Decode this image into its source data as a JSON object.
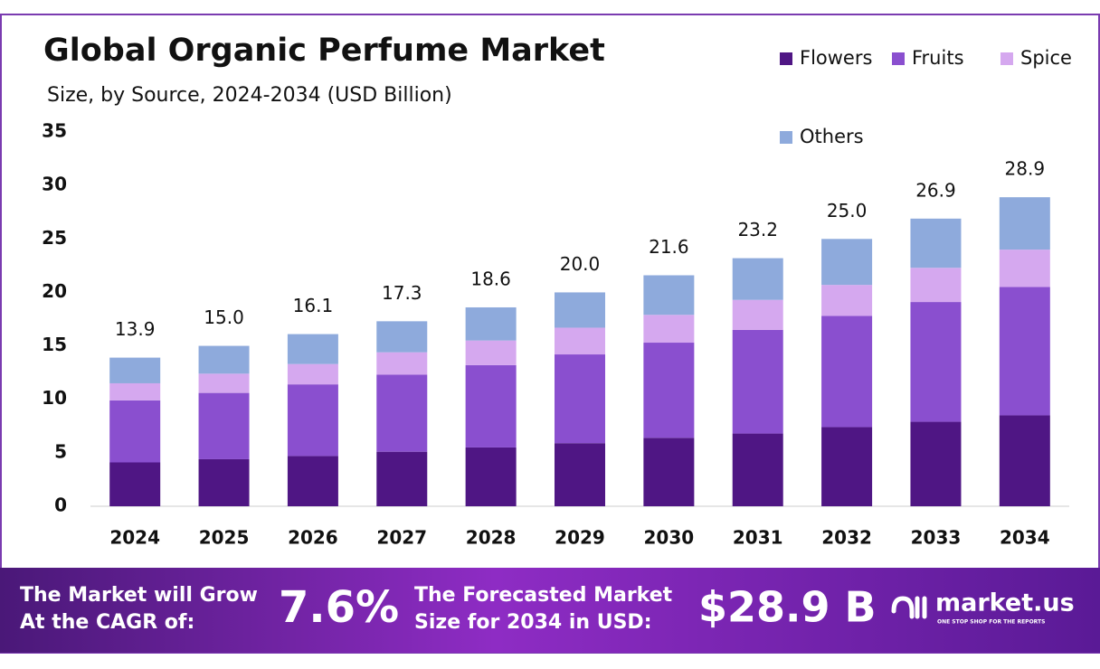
{
  "chart_data": {
    "type": "stacked-bar",
    "title": "Global Organic Perfume Market",
    "subtitle": "Size, by Source, 2024-2034 (USD Billion)",
    "categories": [
      "2024",
      "2025",
      "2026",
      "2027",
      "2028",
      "2029",
      "2030",
      "2031",
      "2032",
      "2033",
      "2034"
    ],
    "series": [
      {
        "name": "Flowers",
        "color": "#4f1684",
        "values": [
          4.1,
          4.4,
          4.7,
          5.1,
          5.5,
          5.9,
          6.4,
          6.8,
          7.4,
          7.9,
          8.5
        ]
      },
      {
        "name": "Fruits",
        "color": "#8a4fcf",
        "values": [
          5.8,
          6.2,
          6.7,
          7.2,
          7.7,
          8.3,
          8.9,
          9.7,
          10.4,
          11.2,
          12.0
        ]
      },
      {
        "name": "Spice",
        "color": "#d5a8ef",
        "values": [
          1.6,
          1.8,
          1.9,
          2.1,
          2.3,
          2.5,
          2.6,
          2.8,
          2.9,
          3.2,
          3.5
        ]
      },
      {
        "name": "Others",
        "color": "#8eaadc",
        "values": [
          2.4,
          2.6,
          2.8,
          2.9,
          3.1,
          3.3,
          3.7,
          3.9,
          4.3,
          4.6,
          4.9
        ]
      }
    ],
    "totals": [
      13.9,
      15.0,
      16.1,
      17.3,
      18.6,
      20.0,
      21.6,
      23.2,
      25.0,
      26.9,
      28.9
    ],
    "total_labels": [
      "13.9",
      "15.0",
      "16.1",
      "17.3",
      "18.6",
      "20.0",
      "21.6",
      "23.2",
      "25.0",
      "26.9",
      "28.9"
    ],
    "ylim": [
      0,
      35
    ],
    "yticks": [
      0,
      5,
      10,
      15,
      20,
      25,
      30,
      35
    ],
    "grid": false,
    "legend": "top-right"
  },
  "footer": {
    "cagr_text": [
      "The Market will Grow",
      "At the CAGR of:"
    ],
    "cagr_value": "7.6%",
    "forecast_text": [
      "The Forecasted Market",
      "Size for 2034 in USD:"
    ],
    "forecast_value": "$28.9 B",
    "brand": "market.us",
    "tagline": "ONE STOP SHOP FOR THE REPORTS"
  }
}
